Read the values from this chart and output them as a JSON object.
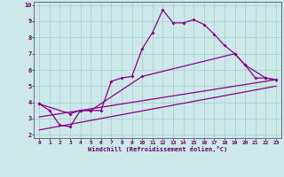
{
  "xlabel": "Windchill (Refroidissement éolien,°C)",
  "bg_color": "#cce8e8",
  "line_color": "#880088",
  "grid_color": "#aacccc",
  "xlim": [
    -0.5,
    23.5
  ],
  "ylim": [
    1.8,
    10.2
  ],
  "xticks": [
    0,
    1,
    2,
    3,
    4,
    5,
    6,
    7,
    8,
    9,
    10,
    11,
    12,
    13,
    14,
    15,
    16,
    17,
    18,
    19,
    20,
    21,
    22,
    23
  ],
  "yticks": [
    2,
    3,
    4,
    5,
    6,
    7,
    8,
    9,
    10
  ],
  "curve1_x": [
    0,
    1,
    2,
    3,
    4,
    5,
    6,
    7,
    8,
    9,
    10,
    11,
    12,
    13,
    14,
    15,
    16,
    17,
    18,
    19,
    20,
    21,
    22,
    23
  ],
  "curve1_y": [
    3.9,
    3.5,
    2.6,
    2.5,
    3.5,
    3.5,
    3.5,
    5.3,
    5.5,
    5.6,
    7.3,
    8.3,
    9.7,
    8.9,
    8.9,
    9.1,
    8.8,
    8.2,
    7.5,
    7.0,
    6.3,
    5.5,
    5.5,
    5.4
  ],
  "curve2_x": [
    0,
    3,
    4,
    5,
    10,
    19,
    20,
    22,
    23
  ],
  "curve2_y": [
    3.9,
    3.3,
    3.5,
    3.5,
    5.6,
    7.0,
    6.3,
    5.5,
    5.4
  ],
  "line1_x": [
    0,
    23
  ],
  "line1_y": [
    3.1,
    5.4
  ],
  "line2_x": [
    0,
    23
  ],
  "line2_y": [
    2.3,
    5.0
  ]
}
